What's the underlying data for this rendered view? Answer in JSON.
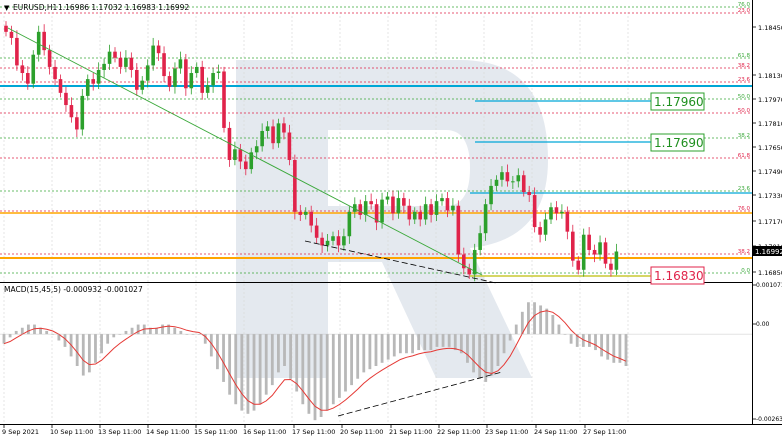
{
  "header": {
    "symbol_label": "EURUSD,H1",
    "ohlc": "1.16986 1.17032 1.16983 1.16992"
  },
  "price_axis": {
    "ticks": [
      "1.18450",
      "1.18130",
      "1.17970",
      "1.17810",
      "1.17650",
      "1.17490",
      "1.17330",
      "1.17170",
      "1.17010",
      "1.16850"
    ],
    "current_price": "1.16992"
  },
  "macd_panel": {
    "label": "MACD(15,45,5) -0.000932 -0.001027",
    "ticks": [
      "0.001071",
      "0.00",
      "-0.002632"
    ]
  },
  "time_axis": {
    "labels": [
      "9 Sep 2021",
      "10 Sep 11:00",
      "13 Sep 11:00",
      "14 Sep 11:00",
      "15 Sep 11:00",
      "16 Sep 11:00",
      "17 Sep 11:00",
      "20 Sep 11:00",
      "21 Sep 11:00",
      "22 Sep 11:00",
      "23 Sep 11:00",
      "24 Sep 11:00",
      "27 Sep 11:00"
    ]
  },
  "fib_levels": {
    "upper_set": [
      "76.0",
      "23.0",
      "61.8",
      "38.2",
      "23.6",
      "50.0",
      "50.0",
      "38.2",
      "61.8"
    ],
    "lower_set": [
      "23.6",
      "76.0",
      "38.2",
      "0.0"
    ]
  },
  "targets": {
    "t1": "1.17960",
    "t2": "1.17690",
    "t3": "1.16830"
  },
  "colors": {
    "bull": "#2ca02c",
    "bear": "#e0234a",
    "fib_green": "#3aa83a",
    "fib_red": "#e0234a",
    "blue_line": "#00a6d6",
    "orange_line": "#ffa500",
    "macd_signal": "#e53935",
    "macd_hist": "#b8b8b8",
    "target_green_text": "#1f8f1f",
    "target_red_text": "#e0234a",
    "watermark": "#e4e9ef"
  },
  "chart_data": {
    "type": "candlestick",
    "symbol": "EURUSD",
    "timeframe": "H1",
    "y_range": [
      1.1679,
      1.1856
    ],
    "closes": [
      1.1843,
      1.1839,
      1.1821,
      1.1816,
      1.1809,
      1.1828,
      1.1843,
      1.1831,
      1.182,
      1.1812,
      1.1803,
      1.1795,
      1.1787,
      1.1779,
      1.1801,
      1.1812,
      1.1809,
      1.1818,
      1.1822,
      1.183,
      1.1826,
      1.182,
      1.1826,
      1.1818,
      1.1805,
      1.1811,
      1.1821,
      1.1834,
      1.1829,
      1.1814,
      1.1807,
      1.1819,
      1.1825,
      1.1806,
      1.1816,
      1.182,
      1.1803,
      1.1808,
      1.1816,
      1.1817,
      1.178,
      1.1759,
      1.1766,
      1.1758,
      1.1753,
      1.1764,
      1.1768,
      1.1778,
      1.1781,
      1.177,
      1.1783,
      1.1777,
      1.1759,
      1.1725,
      1.1723,
      1.1725,
      1.1716,
      1.1708,
      1.1703,
      1.1706,
      1.1709,
      1.1703,
      1.1709,
      1.1725,
      1.173,
      1.1723,
      1.1732,
      1.173,
      1.1718,
      1.1733,
      1.1735,
      1.1724,
      1.1734,
      1.1729,
      1.172,
      1.1725,
      1.172,
      1.173,
      1.1723,
      1.1732,
      1.1734,
      1.1726,
      1.1729,
      1.1697,
      1.1688,
      1.1684,
      1.17,
      1.1711,
      1.173,
      1.1742,
      1.1746,
      1.1751,
      1.1745,
      1.1745,
      1.1749,
      1.1738,
      1.1736,
      1.1715,
      1.171,
      1.172,
      1.1728,
      1.1724,
      1.1725,
      1.1712,
      1.1693,
      1.1687,
      1.171,
      1.17,
      1.1697,
      1.1705,
      1.1691,
      1.1687,
      1.1699
    ],
    "macd": [
      -0.0003,
      -0.0001,
      0.0001,
      0.0002,
      0.0003,
      0.0003,
      0.0002,
      0.0001,
      0.0,
      -0.0002,
      -0.0004,
      -0.0007,
      -0.001,
      -0.0013,
      -0.0012,
      -0.0009,
      -0.0006,
      -0.0003,
      -0.0001,
      0.0,
      0.0001,
      0.0002,
      0.0003,
      0.0003,
      0.0002,
      0.0002,
      0.0003,
      0.0003,
      0.0002,
      0.0001,
      0.0,
      0.0,
      0.0,
      -0.0003,
      -0.0007,
      -0.0011,
      -0.0015,
      -0.0019,
      -0.0022,
      -0.0024,
      -0.0025,
      -0.0024,
      -0.0022,
      -0.0019,
      -0.0016,
      -0.0012,
      -0.001,
      -0.0014,
      -0.0018,
      -0.0022,
      -0.0025,
      -0.0027,
      -0.0026,
      -0.0024,
      -0.0022,
      -0.002,
      -0.0018,
      -0.0016,
      -0.0014,
      -0.0012,
      -0.0011,
      -0.001,
      -0.0009,
      -0.0008,
      -0.0007,
      -0.0006,
      -0.0006,
      -0.0006,
      -0.0005,
      -0.0005,
      -0.0005,
      -0.0004,
      -0.0004,
      -0.0004,
      -0.0005,
      -0.0006,
      -0.0009,
      -0.0012,
      -0.0014,
      -0.0015,
      -0.0013,
      -0.001,
      -0.0006,
      -0.0002,
      0.0003,
      0.0007,
      0.001,
      0.001,
      0.0009,
      0.0008,
      0.0006,
      0.0003,
      0.0,
      -0.0003,
      -0.0004,
      -0.0004,
      -0.0004,
      -0.0005,
      -0.0007,
      -0.0008,
      -0.0009,
      -0.0009,
      -0.001
    ]
  }
}
